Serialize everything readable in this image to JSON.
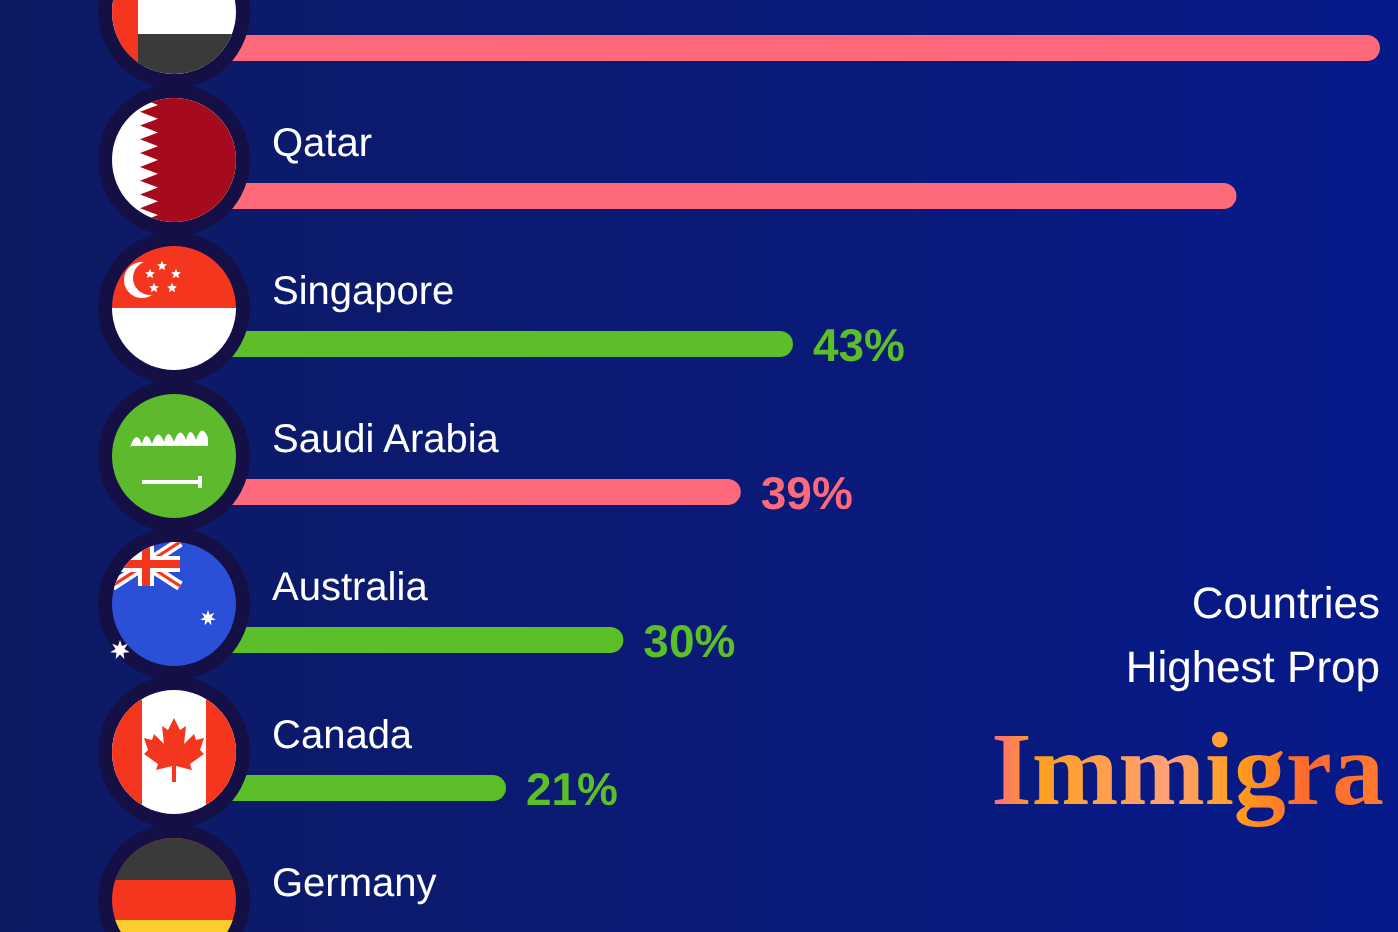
{
  "chart_data": {
    "type": "bar",
    "orientation": "horizontal",
    "title": "Countries\nHighest Prop",
    "subtitle": "Immigra",
    "categories": [
      null,
      "Qatar",
      "Singapore",
      "Saudi Arabia",
      "Australia",
      "Canada",
      "Germany"
    ],
    "values": [
      88,
      77,
      43,
      39,
      30,
      21,
      null
    ],
    "colors": [
      "#fe6a7b",
      "#fe6a7b",
      "#5cbf2a",
      "#fe6a7b",
      "#5cbf2a",
      "#5cbf2a",
      null
    ],
    "value_labels": [
      null,
      null,
      "43%",
      "39%",
      "30%",
      "21%",
      null
    ]
  }
}
